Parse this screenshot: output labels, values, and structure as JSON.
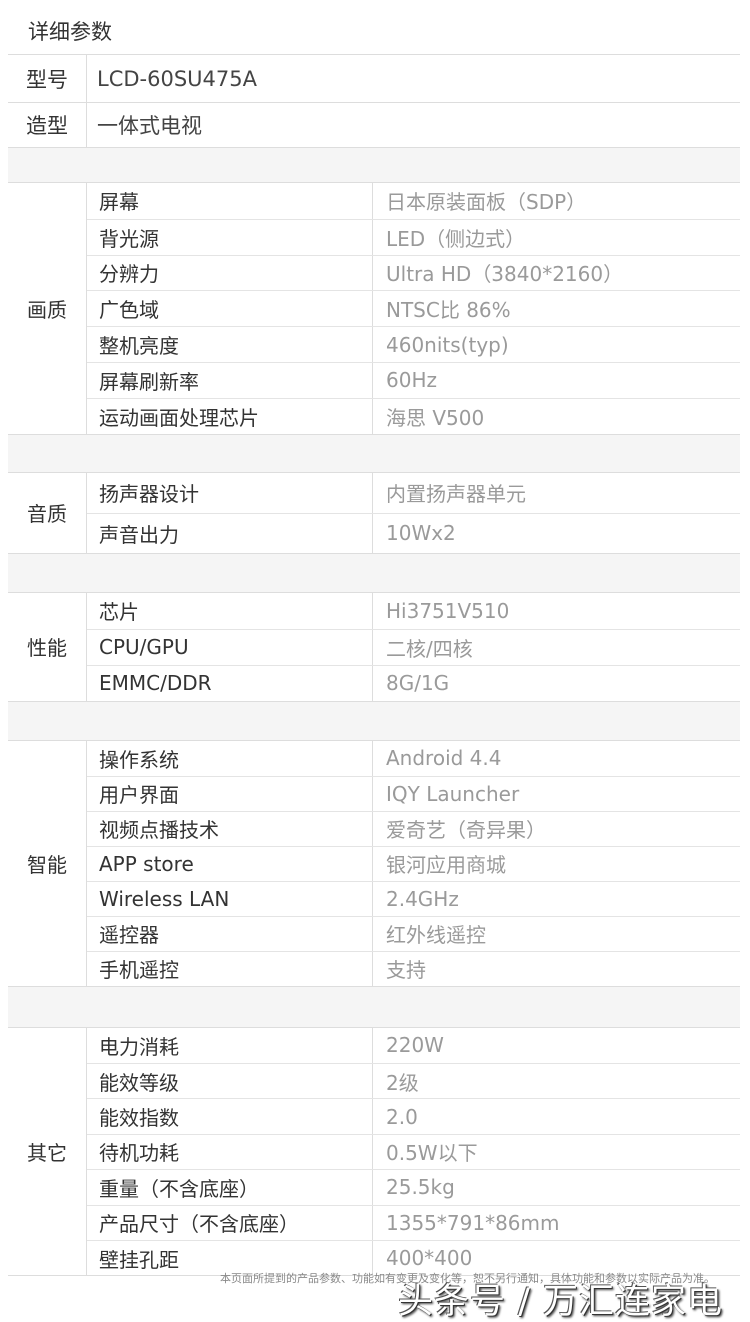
{
  "title": "详细参数",
  "model": {
    "label": "型号",
    "value": "LCD-60SU475A"
  },
  "style": {
    "label": "造型",
    "value": "一体式电视"
  },
  "groups": [
    {
      "category": "画质",
      "rows": [
        {
          "label": "屏幕",
          "value": "日本原装面板（SDP）"
        },
        {
          "label": "背光源",
          "value": "LED（侧边式）"
        },
        {
          "label": "分辨力",
          "value": "Ultra HD（3840*2160）"
        },
        {
          "label": "广色域",
          "value": "NTSC比 86%"
        },
        {
          "label": "整机亮度",
          "value": "460nits(typ)"
        },
        {
          "label": "屏幕刷新率",
          "value": "60Hz"
        },
        {
          "label": "运动画面处理芯片",
          "value": "海思 V500"
        }
      ]
    },
    {
      "category": "音质",
      "rows": [
        {
          "label": "扬声器设计",
          "value": "内置扬声器单元"
        },
        {
          "label": "声音出力",
          "value": "10Wx2"
        }
      ]
    },
    {
      "category": "性能",
      "rows": [
        {
          "label": "芯片",
          "value": "Hi3751V510"
        },
        {
          "label": "CPU/GPU",
          "value": "二核/四核"
        },
        {
          "label": "EMMC/DDR",
          "value": "8G/1G"
        }
      ]
    },
    {
      "category": "智能",
      "rows": [
        {
          "label": "操作系统",
          "value": "Android 4.4"
        },
        {
          "label": "用户界面",
          "value": "IQY Launcher"
        },
        {
          "label": "视频点播技术",
          "value": "爱奇艺（奇异果）"
        },
        {
          "label": "APP store",
          "value": "银河应用商城"
        },
        {
          "label": "Wireless LAN",
          "value": "2.4GHz"
        },
        {
          "label": "遥控器",
          "value": "红外线遥控"
        },
        {
          "label": "手机遥控",
          "value": "支持"
        }
      ]
    },
    {
      "category": "其它",
      "rows": [
        {
          "label": "电力消耗",
          "value": "220W"
        },
        {
          "label": "能效等级",
          "value": "2级"
        },
        {
          "label": "能效指数",
          "value": "2.0"
        },
        {
          "label": "待机功耗",
          "value": "0.5W以下"
        },
        {
          "label": "重量（不含底座）",
          "value": "25.5kg"
        },
        {
          "label": "产品尺寸（不含底座）",
          "value": "1355*791*86mm"
        },
        {
          "label": "壁挂孔距",
          "value": "400*400"
        }
      ]
    }
  ],
  "footer": "本页面所提到的产品参数、功能如有变更及变化等，恕不另行通知，具体功能和参数以实际产品为准。",
  "watermark": "头条号 / 万汇连家电"
}
